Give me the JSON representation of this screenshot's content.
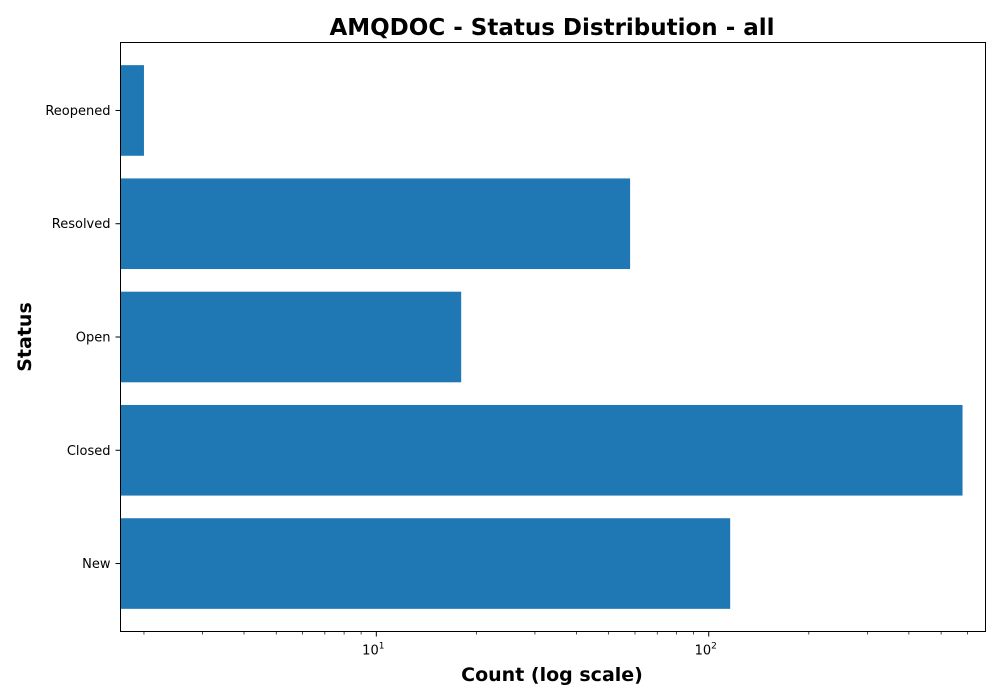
{
  "chart_data": {
    "type": "bar",
    "orientation": "horizontal",
    "title": "AMQDOC - Status Distribution - all",
    "xlabel": "Count (log scale)",
    "ylabel": "Status",
    "x_scale": "log",
    "xlim": [
      1.7,
      680
    ],
    "categories": [
      "New",
      "Closed",
      "Open",
      "Resolved",
      "Reopened"
    ],
    "values": [
      116,
      580,
      18,
      58,
      2
    ],
    "x_major_ticks": [
      {
        "value": 10,
        "base": "10",
        "exp": "1"
      },
      {
        "value": 100,
        "base": "10",
        "exp": "2"
      }
    ],
    "bar_color": "#1f77b4",
    "grid": false,
    "legend": "none"
  }
}
